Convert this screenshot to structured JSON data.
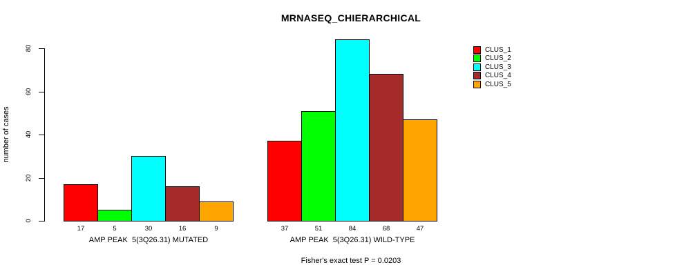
{
  "chart_data": {
    "type": "bar",
    "title": "MRNASEQ_CHIERARCHICAL",
    "ylabel": "number of cases",
    "xlabel": "",
    "yticks": [
      0,
      20,
      40,
      60,
      80
    ],
    "ylim": [
      0,
      86
    ],
    "grid": false,
    "legend_position": "top-right",
    "bar_outline_color": "#000000",
    "categories": [
      "AMP PEAK  5(3Q26.31) MUTATED",
      "AMP PEAK  5(3Q26.31) WILD-TYPE"
    ],
    "series": [
      {
        "name": "CLUS_1",
        "color": "#FF0000",
        "values": [
          17,
          37
        ]
      },
      {
        "name": "CLUS_2",
        "color": "#00FF00",
        "values": [
          5,
          51
        ]
      },
      {
        "name": "CLUS_3",
        "color": "#00FFFF",
        "values": [
          30,
          84
        ]
      },
      {
        "name": "CLUS_4",
        "color": "#A52A2A",
        "values": [
          16,
          68
        ]
      },
      {
        "name": "CLUS_5",
        "color": "#FFA500",
        "values": [
          9,
          47
        ]
      }
    ],
    "bar_value_labels": {
      "AMP PEAK  5(3Q26.31) MUTATED": [
        17,
        5,
        30,
        16,
        9
      ],
      "AMP PEAK  5(3Q26.31) WILD-TYPE": [
        37,
        51,
        84,
        68,
        47
      ]
    },
    "annotation": "Fisher's exact test P = 0.0203"
  }
}
